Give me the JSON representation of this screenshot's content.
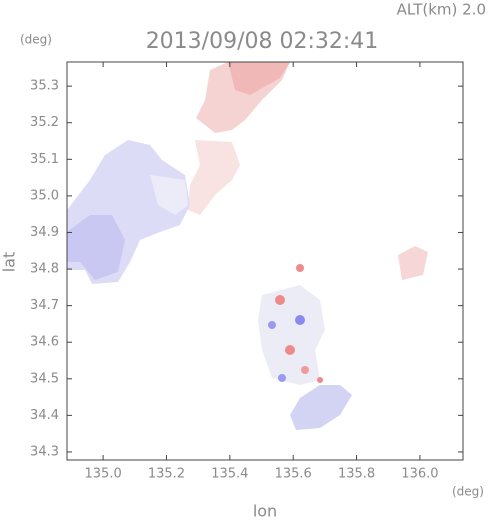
{
  "chart_data": {
    "type": "map",
    "title": "2013/09/08 02:32:41",
    "annotation": "ALT(km) 2.0",
    "y_unit": "(deg)",
    "x_unit": "(deg)",
    "ylabel": "lat",
    "xlabel": "lon",
    "xlim": [
      134.886,
      136.136
    ],
    "ylim": [
      34.278,
      35.366
    ],
    "xticks": [
      {
        "value": 135,
        "label": "135.0"
      },
      135.2,
      135.4,
      135.6,
      135.8,
      {
        "value": 136,
        "label": "136.0"
      }
    ],
    "yticks": [
      34.3,
      34.4,
      34.5,
      34.6,
      34.7,
      34.8,
      34.9,
      {
        "value": 35,
        "label": "35.0"
      },
      35.1,
      35.2,
      35.3
    ]
  }
}
